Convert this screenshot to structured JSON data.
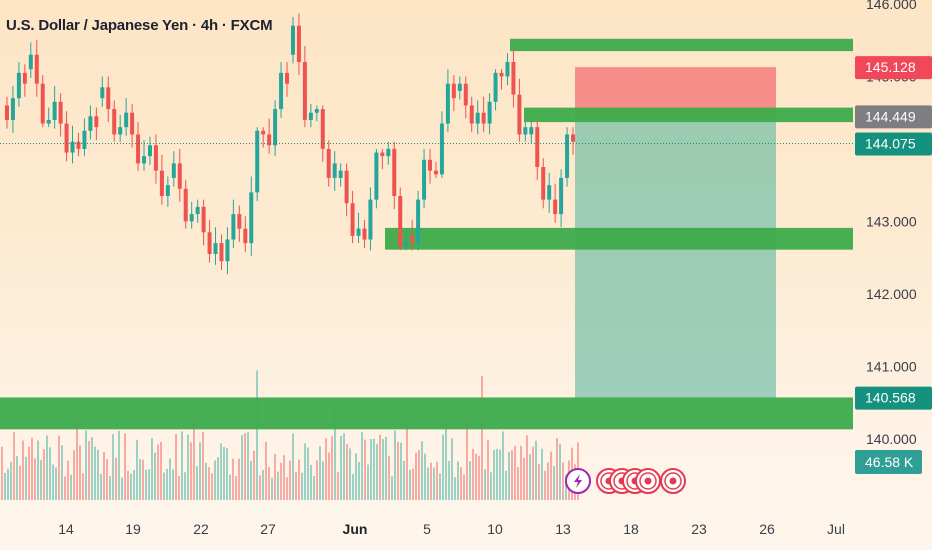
{
  "header": {
    "title": "U.S. Dollar / Japanese Yen · 4h · FXCM"
  },
  "colors": {
    "up": "#26a69a",
    "down": "#ef5350",
    "zone": "#3dab4b",
    "target": "#4db29a",
    "stop": "#f47c7c",
    "tag_sell": "#f0475a",
    "tag_gray": "#7e7e82",
    "tag_price": "#14927f",
    "tag_volume": "#2f9f95"
  },
  "price_tags": {
    "stop": "145.128",
    "entry": "144.449",
    "last": "144.075",
    "target": "140.568",
    "volume": "46.58 K"
  },
  "event_icons": [
    "lightning-icon",
    "event-icon",
    "event-icon",
    "event-icon",
    "event-icon",
    "event-icon"
  ],
  "chart_data": {
    "type": "candlestick",
    "ylim": [
      139.9,
      146.0
    ],
    "y_ticks": [
      "140.000",
      "141.000",
      "142.000",
      "143.000",
      "145.000",
      "146.000"
    ],
    "x_ticks": [
      "14",
      "19",
      "22",
      "27",
      "Jun",
      "5",
      "10",
      "13",
      "18",
      "23",
      "26",
      "Jul"
    ],
    "candles": [
      {
        "x": "May 13",
        "o": 144.6,
        "h": 145.2,
        "l": 144.2,
        "c": 144.9
      },
      {
        "x": "May 14",
        "o": 145.1,
        "h": 145.5,
        "l": 144.3,
        "c": 144.4
      },
      {
        "x": "May 15",
        "o": 144.4,
        "h": 144.9,
        "l": 143.8,
        "c": 144.1
      },
      {
        "x": "May 16",
        "o": 144.1,
        "h": 144.6,
        "l": 143.9,
        "c": 144.3
      },
      {
        "x": "May 19",
        "o": 144.7,
        "h": 145.0,
        "l": 144.1,
        "c": 144.3
      },
      {
        "x": "May 20",
        "o": 144.3,
        "h": 144.7,
        "l": 143.7,
        "c": 143.9
      },
      {
        "x": "May 21",
        "o": 143.9,
        "h": 144.2,
        "l": 143.2,
        "c": 143.5
      },
      {
        "x": "May 22",
        "o": 143.6,
        "h": 144.0,
        "l": 142.9,
        "c": 143.1
      },
      {
        "x": "May 23",
        "o": 143.1,
        "h": 143.3,
        "l": 142.4,
        "c": 142.7
      },
      {
        "x": "May 26",
        "o": 142.7,
        "h": 143.3,
        "l": 142.2,
        "c": 142.9
      },
      {
        "x": "May 27",
        "o": 142.9,
        "h": 144.3,
        "l": 142.5,
        "c": 144.2
      },
      {
        "x": "May 28",
        "o": 144.2,
        "h": 145.2,
        "l": 143.9,
        "c": 144.9
      },
      {
        "x": "May 29",
        "o": 145.3,
        "h": 146.1,
        "l": 144.3,
        "c": 144.5
      },
      {
        "x": "May 30",
        "o": 144.5,
        "h": 144.6,
        "l": 143.4,
        "c": 143.8
      },
      {
        "x": "Jun 2",
        "o": 143.6,
        "h": 143.8,
        "l": 142.7,
        "c": 142.9
      },
      {
        "x": "Jun 3",
        "o": 142.9,
        "h": 144.0,
        "l": 142.6,
        "c": 143.9
      },
      {
        "x": "Jun 4",
        "o": 143.9,
        "h": 144.1,
        "l": 142.6,
        "c": 142.7
      },
      {
        "x": "Jun 5",
        "o": 142.8,
        "h": 144.0,
        "l": 142.6,
        "c": 143.7
      },
      {
        "x": "Jun 6",
        "o": 143.7,
        "h": 145.1,
        "l": 143.6,
        "c": 144.7
      },
      {
        "x": "Jun 9",
        "o": 144.8,
        "h": 145.0,
        "l": 144.2,
        "c": 144.5
      },
      {
        "x": "Jun 10",
        "o": 144.5,
        "h": 145.1,
        "l": 144.2,
        "c": 145.0
      },
      {
        "x": "Jun 11",
        "o": 145.0,
        "h": 145.4,
        "l": 144.1,
        "c": 144.3
      },
      {
        "x": "Jun 12",
        "o": 144.2,
        "h": 144.4,
        "l": 143.1,
        "c": 143.5
      },
      {
        "x": "Jun 13",
        "o": 143.3,
        "h": 144.3,
        "l": 142.9,
        "c": 144.1
      }
    ],
    "zones": [
      {
        "y_low": 145.35,
        "y_high": 145.52
      },
      {
        "y_low": 144.37,
        "y_high": 144.57
      },
      {
        "y_low": 142.61,
        "y_high": 142.91
      },
      {
        "y_low": 140.13,
        "y_high": 140.57
      }
    ],
    "position": {
      "entry": 144.449,
      "stop": 145.128,
      "target": 140.568
    },
    "last_price": 144.075
  }
}
